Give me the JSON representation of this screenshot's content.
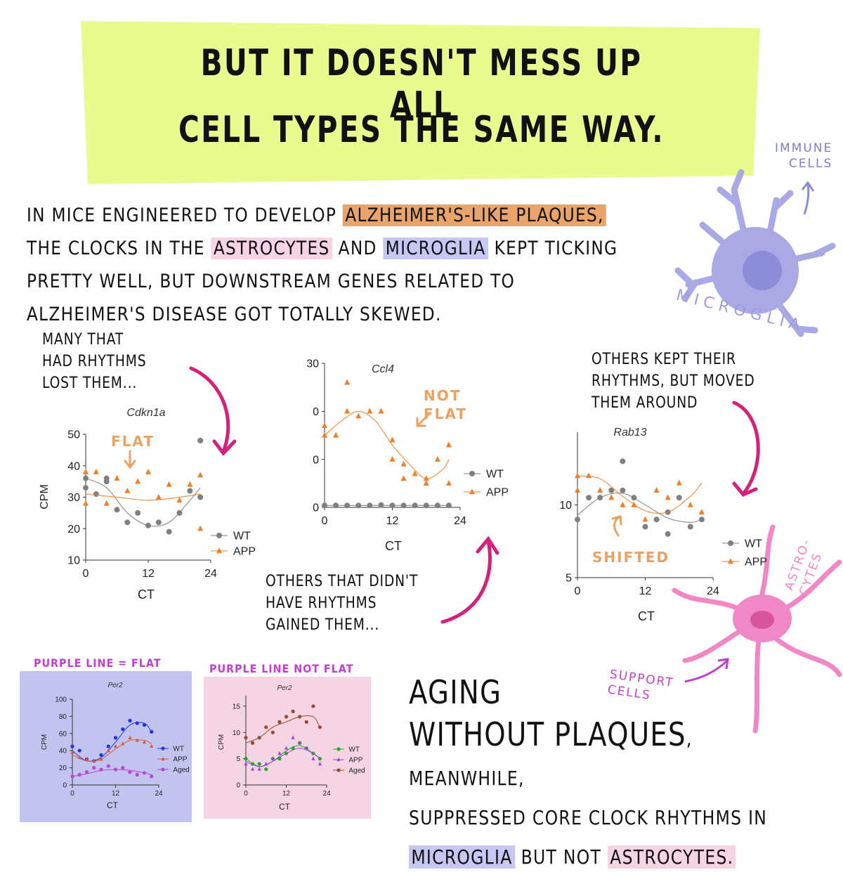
{
  "title_lines": [
    "BUT IT DOESN'T MESS UP ALL",
    "CELL TYPES THE SAME WAY."
  ],
  "body": [
    "IN MICE ENGINEERED TO DEVELOP ",
    "ALZHEIMER'S-LIKE PLAQUES,",
    " THE CLOCKS IN THE ",
    "ASTROCYTES",
    " AND ",
    "MICROGLIA",
    " KEPT TICKING PRETTY WELL, BUT DOWNSTREAM GENES RELATED TO ALZHEIMER'S DISEASE GOT TOTALLY SKEWED."
  ],
  "notes": [
    "MANY THAT\nHAD RHYTHMS\nLOST THEM...",
    "OTHERS THAT DIDN'T\nHAVE RHYTHMS\nGAINED THEM...",
    "OTHERS KEPT THEIR\nRHYTHMS, BUT MOVED\nTHEM AROUND"
  ],
  "cells": {
    "immune": "IMMUNE\nCELLS",
    "microglia": "MICROGLIA",
    "astrocytes": "ASTRO-\nCYTES",
    "support": "SUPPORT\nCELLS"
  },
  "conclusion": [
    "AGING",
    "WITHOUT PLAQUES",
    ", MEANWHILE,",
    "SUPPRESSED CORE CLOCK RHYTHMS IN",
    "MICROGLIA",
    " BUT NOT ",
    "ASTROCYTES."
  ],
  "chart_data": [
    {
      "type": "scatter",
      "title": "Cdkn1a",
      "annotation": "FLAT",
      "xlabel": "CT",
      "ylabel": "CPM",
      "xlim": [
        0,
        24
      ],
      "ylim": [
        10,
        50
      ],
      "xticks": [
        0,
        12,
        24
      ],
      "yticks": [
        10,
        20,
        30,
        40,
        50
      ],
      "series": [
        {
          "name": "WT",
          "color": "#808080",
          "marker": "circle",
          "x": [
            0,
            0,
            2,
            4,
            4,
            6,
            8,
            10,
            12,
            14,
            16,
            18,
            20,
            22,
            22
          ],
          "values": [
            36,
            33,
            31,
            35,
            36,
            26,
            22,
            25,
            21,
            22,
            19,
            25,
            32,
            48,
            30
          ],
          "fit_x": [
            0,
            4,
            8,
            12,
            16,
            20,
            22
          ],
          "fit_values": [
            36,
            33,
            25,
            21,
            22,
            29,
            33
          ]
        },
        {
          "name": "APP",
          "color": "#f07f2a",
          "marker": "triangle",
          "x": [
            0,
            0,
            2,
            4,
            6,
            8,
            10,
            12,
            14,
            16,
            18,
            20,
            22,
            22
          ],
          "values": [
            28,
            38,
            38,
            28,
            36,
            32,
            35,
            38,
            30,
            34,
            29,
            34,
            37,
            20
          ],
          "fit_x": [
            0,
            6,
            12,
            18,
            22
          ],
          "fit_values": [
            31,
            30,
            29,
            30,
            31
          ]
        }
      ]
    },
    {
      "type": "scatter",
      "title": "Ccl4",
      "annotation": "NOT\nFLAT",
      "xlabel": "CT",
      "xlim": [
        0,
        24
      ],
      "ylim": [
        0,
        30
      ],
      "xticks": [
        0,
        12,
        24
      ],
      "yticks": [
        0,
        {
          "value": 10,
          "label": "0"
        },
        {
          "value": 20,
          "label": "0"
        },
        30
      ],
      "series": [
        {
          "name": "WT",
          "color": "#808080",
          "marker": "circle",
          "x": [
            0,
            2,
            4,
            6,
            8,
            10,
            12,
            14,
            16,
            18,
            20,
            22
          ],
          "values": [
            0.4,
            0.4,
            0.4,
            0.4,
            0.4,
            0.5,
            0.4,
            0.4,
            0.4,
            0.4,
            0.4,
            0.4
          ],
          "fit_x": [
            0,
            6,
            12,
            18,
            22
          ],
          "fit_values": [
            0.4,
            0.4,
            0.4,
            0.4,
            0.4
          ]
        },
        {
          "name": "APP",
          "color": "#f07f2a",
          "marker": "triangle",
          "x": [
            0,
            0,
            2,
            4,
            4,
            6,
            8,
            10,
            12,
            12,
            14,
            14,
            16,
            18,
            18,
            20,
            22,
            22
          ],
          "values": [
            15,
            17,
            15,
            26,
            20,
            19,
            20,
            20,
            14,
            10,
            9,
            6,
            7,
            5,
            6,
            10,
            13,
            5
          ],
          "fit_x": [
            0,
            3,
            6,
            9,
            12,
            15,
            18,
            21,
            22
          ],
          "fit_values": [
            15,
            18,
            20,
            18,
            13,
            9,
            6,
            8,
            10
          ]
        }
      ]
    },
    {
      "type": "scatter",
      "title": "Rab13",
      "annotation": "SHIFTED",
      "xlabel": "CT",
      "xlim": [
        0,
        24
      ],
      "ylim": [
        5,
        15
      ],
      "xticks": [
        0,
        12,
        24
      ],
      "yticks": [
        5,
        10
      ],
      "series": [
        {
          "name": "WT",
          "color": "#808080",
          "marker": "circle",
          "x": [
            0,
            2,
            4,
            6,
            8,
            8,
            10,
            12,
            14,
            16,
            16,
            18,
            20,
            22
          ],
          "values": [
            9,
            10.5,
            10.5,
            11,
            13,
            11,
            10.5,
            8.5,
            9,
            8,
            9.5,
            10.5,
            8.5,
            9
          ],
          "fit_x": [
            0,
            4,
            8,
            12,
            16,
            20,
            22
          ],
          "fit_values": [
            9.3,
            10.5,
            10.8,
            10,
            9.1,
            8.8,
            9
          ]
        },
        {
          "name": "APP",
          "color": "#f07f2a",
          "marker": "triangle",
          "x": [
            0,
            0,
            2,
            4,
            6,
            8,
            10,
            12,
            14,
            16,
            18,
            20,
            22
          ],
          "values": [
            12,
            11,
            12,
            11,
            10.5,
            10,
            10,
            9,
            11,
            10.5,
            11.5,
            10,
            9.5
          ],
          "fit_x": [
            0,
            4,
            8,
            12,
            16,
            20,
            22
          ],
          "fit_values": [
            12,
            11.8,
            10.6,
            9.6,
            9.5,
            10.6,
            11.5
          ]
        }
      ]
    },
    {
      "type": "scatter",
      "title": "Per2",
      "annotation": "PURPLE LINE = FLAT",
      "xlabel": "CT",
      "ylabel": "CPM",
      "xlim": [
        0,
        24
      ],
      "ylim": [
        0,
        100
      ],
      "xticks": [
        0,
        12,
        24
      ],
      "yticks": [
        0,
        20,
        40,
        60,
        80,
        100
      ],
      "series": [
        {
          "name": "WT",
          "color": "#2233dd",
          "marker": "circle",
          "x": [
            0,
            2,
            4,
            6,
            8,
            10,
            12,
            14,
            16,
            18,
            20,
            22
          ],
          "values": [
            45,
            40,
            30,
            28,
            35,
            45,
            55,
            65,
            75,
            72,
            70,
            62
          ],
          "fit_x": [
            0,
            4,
            8,
            12,
            16,
            20,
            22
          ],
          "fit_values": [
            40,
            28,
            32,
            50,
            70,
            72,
            62
          ]
        },
        {
          "name": "APP",
          "color": "#e0553a",
          "marker": "triangle",
          "x": [
            0,
            2,
            4,
            6,
            8,
            10,
            12,
            14,
            16,
            18,
            20,
            22
          ],
          "values": [
            38,
            32,
            30,
            28,
            30,
            40,
            45,
            48,
            55,
            52,
            50,
            45
          ],
          "fit_x": [
            0,
            4,
            8,
            12,
            16,
            20,
            22
          ],
          "fit_values": [
            35,
            28,
            30,
            42,
            52,
            52,
            48
          ]
        },
        {
          "name": "Aged",
          "color": "#c040d8",
          "marker": "circle",
          "x": [
            0,
            2,
            4,
            6,
            8,
            10,
            12,
            14,
            16,
            18,
            20,
            22
          ],
          "values": [
            10,
            12,
            15,
            20,
            18,
            22,
            18,
            20,
            15,
            12,
            14,
            10
          ],
          "fit_x": [
            0,
            4,
            8,
            12,
            16,
            20,
            22
          ],
          "fit_values": [
            10,
            13,
            17,
            18,
            17,
            14,
            12
          ]
        }
      ]
    },
    {
      "type": "scatter",
      "title": "Per2",
      "annotation": "PURPLE LINE NOT FLAT",
      "xlabel": "CT",
      "ylabel": "CPM",
      "xlim": [
        0,
        24
      ],
      "ylim": [
        0,
        17
      ],
      "xticks": [
        0,
        12,
        24
      ],
      "yticks": [
        0,
        5,
        10,
        15
      ],
      "series": [
        {
          "name": "WT",
          "color": "#22aa22",
          "marker": "circle",
          "x": [
            0,
            2,
            4,
            6,
            8,
            10,
            12,
            14,
            16,
            18,
            20,
            22
          ],
          "values": [
            5,
            4,
            4,
            3,
            5,
            5,
            6,
            7,
            8,
            7,
            6,
            5
          ],
          "fit_x": [
            0,
            4,
            8,
            12,
            16,
            20,
            22
          ],
          "fit_values": [
            5,
            3.5,
            4.5,
            6.5,
            7.5,
            6,
            5
          ]
        },
        {
          "name": "APP",
          "color": "#a040e0",
          "marker": "triangle",
          "x": [
            0,
            2,
            4,
            6,
            8,
            10,
            12,
            14,
            16,
            18,
            20,
            22
          ],
          "values": [
            4,
            3,
            3,
            4,
            5,
            6,
            7,
            9,
            8,
            7,
            5,
            4
          ],
          "fit_x": [
            0,
            4,
            8,
            12,
            16,
            20,
            22
          ],
          "fit_values": [
            4.5,
            3.5,
            4.5,
            6,
            7,
            6,
            5
          ]
        },
        {
          "name": "Aged",
          "color": "#9a4a2a",
          "marker": "circle",
          "x": [
            0,
            2,
            4,
            6,
            8,
            10,
            12,
            14,
            16,
            18,
            20,
            22
          ],
          "values": [
            9,
            8,
            9,
            11,
            10,
            12,
            13,
            14,
            13,
            12,
            15,
            11
          ],
          "fit_x": [
            0,
            4,
            8,
            12,
            16,
            20,
            22
          ],
          "fit_values": [
            8,
            9,
            11,
            12,
            13,
            13,
            11
          ]
        }
      ]
    }
  ]
}
